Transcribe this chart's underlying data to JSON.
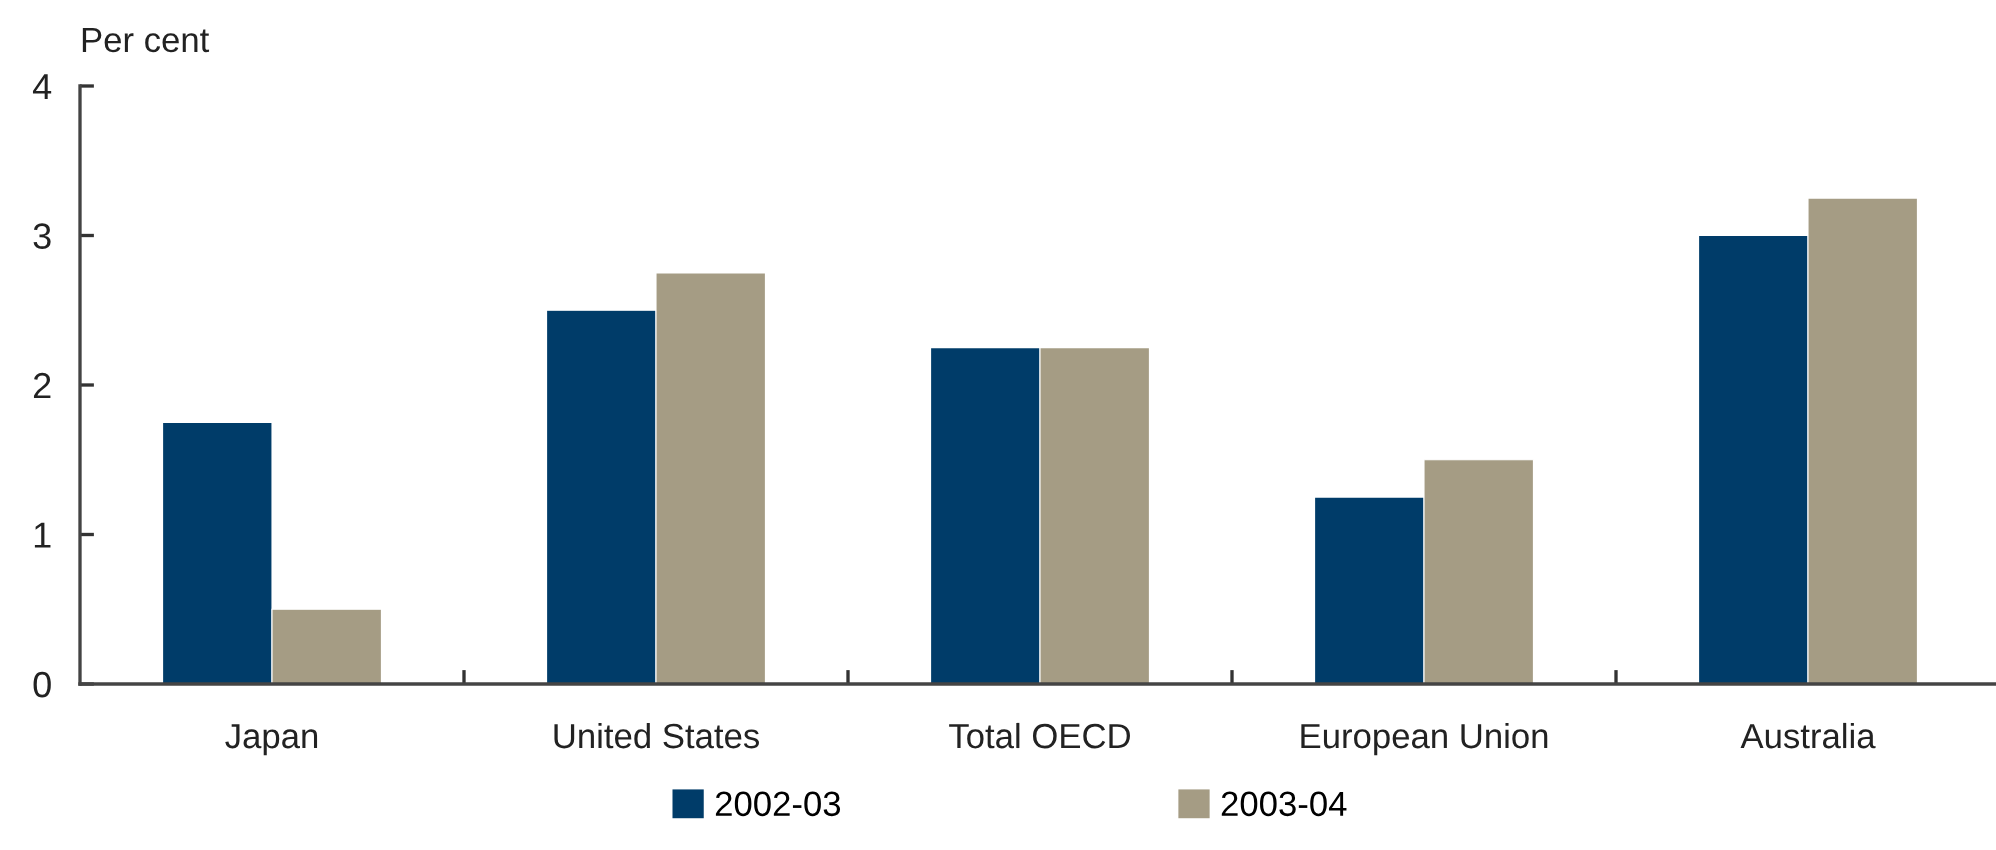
{
  "chart_data": {
    "type": "bar",
    "ylabel": "Per cent",
    "categories": [
      "Japan",
      "United States",
      "Total OECD",
      "European Union",
      "Australia"
    ],
    "series": [
      {
        "name": "2002-03",
        "color": "#003c69",
        "values": [
          1.75,
          2.5,
          2.25,
          1.25,
          3.0
        ]
      },
      {
        "name": "2003-04",
        "color": "#a59c84",
        "values": [
          0.5,
          2.75,
          2.25,
          1.5,
          3.25
        ]
      }
    ],
    "ylim": [
      0,
      4
    ],
    "yticks": [
      0,
      1,
      2,
      3,
      4
    ],
    "grid": false,
    "legend": "bottom"
  }
}
